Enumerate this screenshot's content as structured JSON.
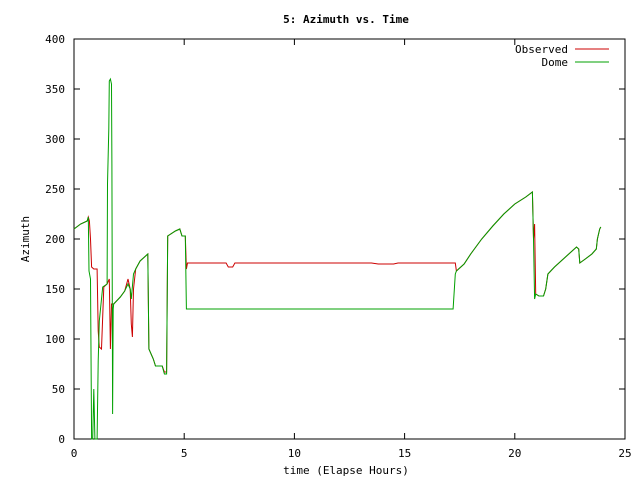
{
  "chart_data": {
    "type": "line",
    "title": "5: Azimuth vs. Time",
    "xlabel": "time (Elapse Hours)",
    "ylabel": "Azimuth",
    "xlim": [
      0,
      25
    ],
    "ylim": [
      0,
      400
    ],
    "xticks": [
      0,
      5,
      10,
      15,
      20,
      25
    ],
    "yticks": [
      0,
      50,
      100,
      150,
      200,
      250,
      300,
      350,
      400
    ],
    "grid": false,
    "legend_position": "top-right",
    "series": [
      {
        "name": "Observed",
        "color": "#cc0000",
        "points": [
          [
            0.0,
            210
          ],
          [
            0.3,
            215
          ],
          [
            0.6,
            218
          ],
          [
            0.65,
            222
          ],
          [
            0.7,
            218
          ],
          [
            0.75,
            200
          ],
          [
            0.8,
            172
          ],
          [
            0.9,
            170
          ],
          [
            1.05,
            170
          ],
          [
            1.1,
            108
          ],
          [
            1.15,
            92
          ],
          [
            1.25,
            90
          ],
          [
            1.35,
            152
          ],
          [
            1.5,
            155
          ],
          [
            1.6,
            160
          ],
          [
            1.65,
            90
          ],
          [
            1.7,
            135
          ],
          [
            1.8,
            135
          ],
          [
            2.1,
            142
          ],
          [
            2.3,
            148
          ],
          [
            2.45,
            160
          ],
          [
            2.55,
            150
          ],
          [
            2.6,
            115
          ],
          [
            2.65,
            102
          ],
          [
            2.7,
            150
          ],
          [
            2.8,
            170
          ],
          [
            3.0,
            178
          ],
          [
            3.2,
            182
          ],
          [
            3.35,
            185
          ],
          [
            3.4,
            90
          ],
          [
            3.6,
            80
          ],
          [
            3.7,
            73
          ],
          [
            4.0,
            73
          ],
          [
            4.1,
            67
          ],
          [
            4.2,
            67
          ],
          [
            4.25,
            203
          ],
          [
            4.6,
            208
          ],
          [
            4.8,
            210
          ],
          [
            4.9,
            203
          ],
          [
            5.05,
            203
          ],
          [
            5.1,
            170
          ],
          [
            5.15,
            176
          ],
          [
            5.5,
            176
          ],
          [
            6.0,
            176
          ],
          [
            6.9,
            176
          ],
          [
            7.0,
            172
          ],
          [
            7.2,
            172
          ],
          [
            7.3,
            176
          ],
          [
            8.0,
            176
          ],
          [
            10.0,
            176
          ],
          [
            12.0,
            176
          ],
          [
            13.5,
            176
          ],
          [
            13.8,
            175
          ],
          [
            14.5,
            175
          ],
          [
            14.7,
            176
          ],
          [
            15.0,
            176
          ],
          [
            16.0,
            176
          ],
          [
            17.0,
            176
          ],
          [
            17.3,
            176
          ],
          [
            17.35,
            168
          ],
          [
            17.7,
            175
          ],
          [
            18.0,
            185
          ],
          [
            18.5,
            200
          ],
          [
            19.0,
            213
          ],
          [
            19.5,
            225
          ],
          [
            20.0,
            235
          ],
          [
            20.5,
            242
          ],
          [
            20.8,
            247
          ],
          [
            20.85,
            200
          ],
          [
            20.9,
            215
          ],
          [
            20.95,
            145
          ],
          [
            21.1,
            143
          ],
          [
            21.3,
            143
          ],
          [
            21.4,
            150
          ],
          [
            21.5,
            165
          ],
          [
            21.8,
            172
          ],
          [
            22.0,
            176
          ],
          [
            22.3,
            182
          ],
          [
            22.6,
            188
          ],
          [
            22.8,
            192
          ],
          [
            22.9,
            190
          ],
          [
            22.95,
            176
          ],
          [
            23.2,
            180
          ],
          [
            23.5,
            185
          ],
          [
            23.7,
            190
          ],
          [
            23.75,
            200
          ],
          [
            23.85,
            210
          ],
          [
            23.9,
            212
          ]
        ]
      },
      {
        "name": "Dome",
        "color": "#00a000",
        "points": [
          [
            0.0,
            210
          ],
          [
            0.3,
            215
          ],
          [
            0.6,
            218
          ],
          [
            0.65,
            222
          ],
          [
            0.68,
            168
          ],
          [
            0.75,
            160
          ],
          [
            0.8,
            0
          ],
          [
            0.85,
            0
          ],
          [
            0.9,
            50
          ],
          [
            0.95,
            0
          ],
          [
            1.05,
            0
          ],
          [
            1.1,
            78
          ],
          [
            1.15,
            118
          ],
          [
            1.3,
            152
          ],
          [
            1.5,
            155
          ],
          [
            1.52,
            255
          ],
          [
            1.58,
            310
          ],
          [
            1.6,
            358
          ],
          [
            1.65,
            360
          ],
          [
            1.7,
            355
          ],
          [
            1.72,
            275
          ],
          [
            1.75,
            25
          ],
          [
            1.78,
            130
          ],
          [
            1.8,
            135
          ],
          [
            2.1,
            142
          ],
          [
            2.3,
            148
          ],
          [
            2.45,
            155
          ],
          [
            2.55,
            150
          ],
          [
            2.6,
            140
          ],
          [
            2.7,
            165
          ],
          [
            2.8,
            170
          ],
          [
            3.0,
            178
          ],
          [
            3.2,
            182
          ],
          [
            3.35,
            185
          ],
          [
            3.4,
            90
          ],
          [
            3.6,
            80
          ],
          [
            3.7,
            73
          ],
          [
            4.0,
            73
          ],
          [
            4.1,
            65
          ],
          [
            4.2,
            65
          ],
          [
            4.25,
            203
          ],
          [
            4.6,
            208
          ],
          [
            4.8,
            210
          ],
          [
            4.9,
            203
          ],
          [
            5.05,
            203
          ],
          [
            5.1,
            130
          ],
          [
            6.0,
            130
          ],
          [
            8.0,
            130
          ],
          [
            10.0,
            130
          ],
          [
            12.0,
            130
          ],
          [
            14.0,
            130
          ],
          [
            16.0,
            130
          ],
          [
            17.2,
            130
          ],
          [
            17.3,
            165
          ],
          [
            17.35,
            168
          ],
          [
            17.7,
            175
          ],
          [
            18.0,
            185
          ],
          [
            18.5,
            200
          ],
          [
            19.0,
            213
          ],
          [
            19.5,
            225
          ],
          [
            20.0,
            235
          ],
          [
            20.5,
            242
          ],
          [
            20.8,
            247
          ],
          [
            20.85,
            200
          ],
          [
            20.9,
            140
          ],
          [
            20.95,
            145
          ],
          [
            21.1,
            143
          ],
          [
            21.3,
            143
          ],
          [
            21.4,
            150
          ],
          [
            21.5,
            165
          ],
          [
            21.8,
            172
          ],
          [
            22.0,
            176
          ],
          [
            22.3,
            182
          ],
          [
            22.6,
            188
          ],
          [
            22.8,
            192
          ],
          [
            22.9,
            190
          ],
          [
            22.95,
            176
          ],
          [
            23.2,
            180
          ],
          [
            23.5,
            185
          ],
          [
            23.7,
            190
          ],
          [
            23.75,
            200
          ],
          [
            23.85,
            210
          ],
          [
            23.9,
            212
          ]
        ]
      }
    ]
  }
}
